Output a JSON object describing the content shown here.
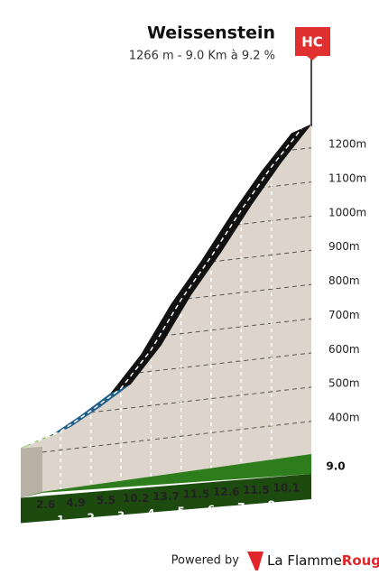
{
  "chart_data": {
    "type": "area",
    "title": "Weissenstein",
    "subtitle": "1266 m - 9.0 Km à 9.2 %",
    "category": "HC",
    "x": [
      0,
      1,
      2,
      3,
      4,
      5,
      6,
      7,
      8,
      9
    ],
    "values": [
      438,
      464,
      513,
      568,
      670,
      807,
      922,
      1048,
      1163,
      1264
    ],
    "segment_labels": [
      2.6,
      4.9,
      5.5,
      10.2,
      13.7,
      11.5,
      12.6,
      11.5,
      10.1
    ],
    "segment_colors": [
      "#7ac943",
      "#1f5f8b",
      "#1f5f8b",
      "#111111",
      "#111111",
      "#111111",
      "#111111",
      "#111111",
      "#111111"
    ],
    "xticks": [
      1,
      2,
      3,
      4,
      5,
      6,
      7,
      8,
      {
        "value": 9,
        "label": "9.0"
      }
    ],
    "xlim": [
      0,
      9
    ],
    "ylim": [
      400,
      1200
    ],
    "yticks": [
      {
        "value": 400,
        "label": "400m"
      },
      {
        "value": 500,
        "label": "500m"
      },
      {
        "value": 600,
        "label": "600m"
      },
      {
        "value": 700,
        "label": "700m"
      },
      {
        "value": 800,
        "label": "800m"
      },
      {
        "value": 900,
        "label": "900m"
      },
      {
        "value": 1000,
        "label": "1000m"
      },
      {
        "value": 1100,
        "label": "1100m"
      },
      {
        "value": 1200,
        "label": "1200m"
      }
    ],
    "grid": true
  },
  "footer": {
    "powered_by": "Powered by",
    "brand": "La Flamme",
    "brand_accent": "Rouge"
  }
}
